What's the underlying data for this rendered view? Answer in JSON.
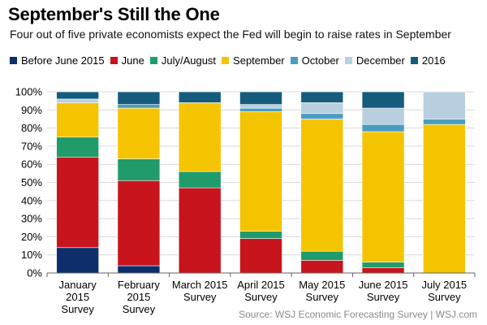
{
  "title": "September's Still the One",
  "subtitle": "Four out of five private economists expect the Fed will begin to raise rates in September",
  "source": "Source: WSJ Economic Forecasting Survey  |  WSJ.com",
  "colors": {
    "Before June 2015": "#0d2d6b",
    "June": "#c8141c",
    "July/August": "#1f9c6a",
    "September": "#f5c400",
    "October": "#4a9dc0",
    "December": "#b8cfe0",
    "2016": "#155c7d"
  },
  "chart_data": {
    "type": "bar",
    "stacked": true,
    "title": "September's Still the One",
    "subtitle": "Four out of five private economists expect the Fed will begin to raise rates in September",
    "categories": [
      [
        "January",
        "2015",
        "Survey"
      ],
      [
        "February",
        "2015",
        "Survey"
      ],
      [
        "March 2015",
        "Survey"
      ],
      [
        "April 2015",
        "Survey"
      ],
      [
        "May 2015",
        "Survey"
      ],
      [
        "June 2015",
        "Survey"
      ],
      [
        "July 2015",
        "Survey"
      ]
    ],
    "series": [
      {
        "name": "Before June 2015",
        "values": [
          14,
          4,
          0,
          0,
          0,
          0,
          0
        ]
      },
      {
        "name": "June",
        "values": [
          50,
          47,
          47,
          19,
          7,
          3,
          0
        ]
      },
      {
        "name": "July/August",
        "values": [
          11,
          12,
          9,
          4,
          5,
          3,
          0
        ]
      },
      {
        "name": "September",
        "values": [
          19,
          28,
          38,
          66,
          73,
          72,
          82
        ]
      },
      {
        "name": "October",
        "values": [
          0,
          2,
          0,
          2,
          3,
          4,
          3
        ]
      },
      {
        "name": "December",
        "values": [
          2,
          0,
          0,
          2,
          6,
          9,
          15
        ]
      },
      {
        "name": "2016",
        "values": [
          4,
          7,
          6,
          7,
          6,
          9,
          0
        ]
      }
    ],
    "y_ticks": [
      "0%",
      "10%",
      "20%",
      "30%",
      "40%",
      "50%",
      "60%",
      "70%",
      "80%",
      "90%",
      "100%"
    ],
    "ylim": [
      0,
      100
    ],
    "grid": true,
    "legend_position": "top"
  }
}
